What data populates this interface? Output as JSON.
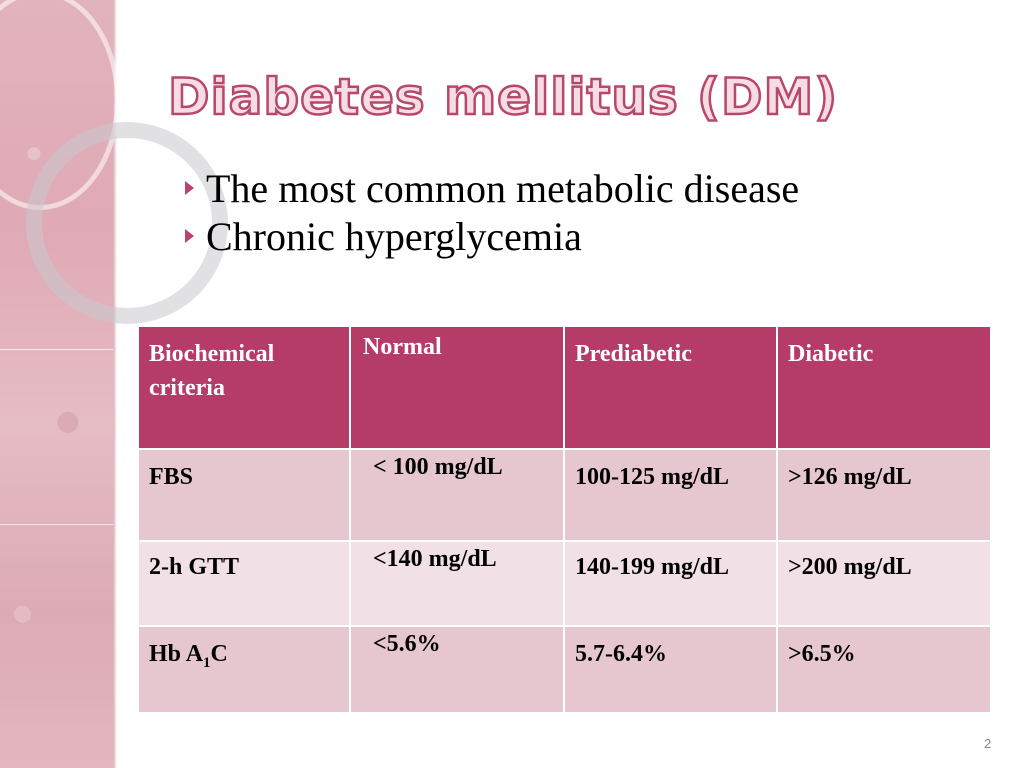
{
  "slide": {
    "title": "Diabetes mellitus (DM)",
    "bullets": [
      "The most common metabolic disease",
      "Chronic hyperglycemia"
    ],
    "page_number": "2",
    "colors": {
      "accent": "#b63c68",
      "row_dark": "#e6c7d0",
      "row_light": "#f1e1e6",
      "side_panel": "#e0b0bb"
    }
  },
  "table": {
    "headers": [
      "Biochemical criteria",
      "Normal",
      "Prediabetic",
      "Diabetic"
    ],
    "rows": [
      {
        "label": "FBS",
        "normal": "< 100 mg/dL",
        "prediabetic": "100-125 mg/dL",
        "diabetic": ">126 mg/dL"
      },
      {
        "label": "2-h GTT",
        "normal": "<140 mg/dL",
        "prediabetic": "140-199 mg/dL",
        "diabetic": ">200 mg/dL"
      },
      {
        "label_main": "Hb A",
        "label_sub": "1",
        "label_end": "C",
        "normal": "<5.6%",
        "prediabetic": "5.7-6.4%",
        "diabetic": ">6.5%"
      }
    ]
  }
}
